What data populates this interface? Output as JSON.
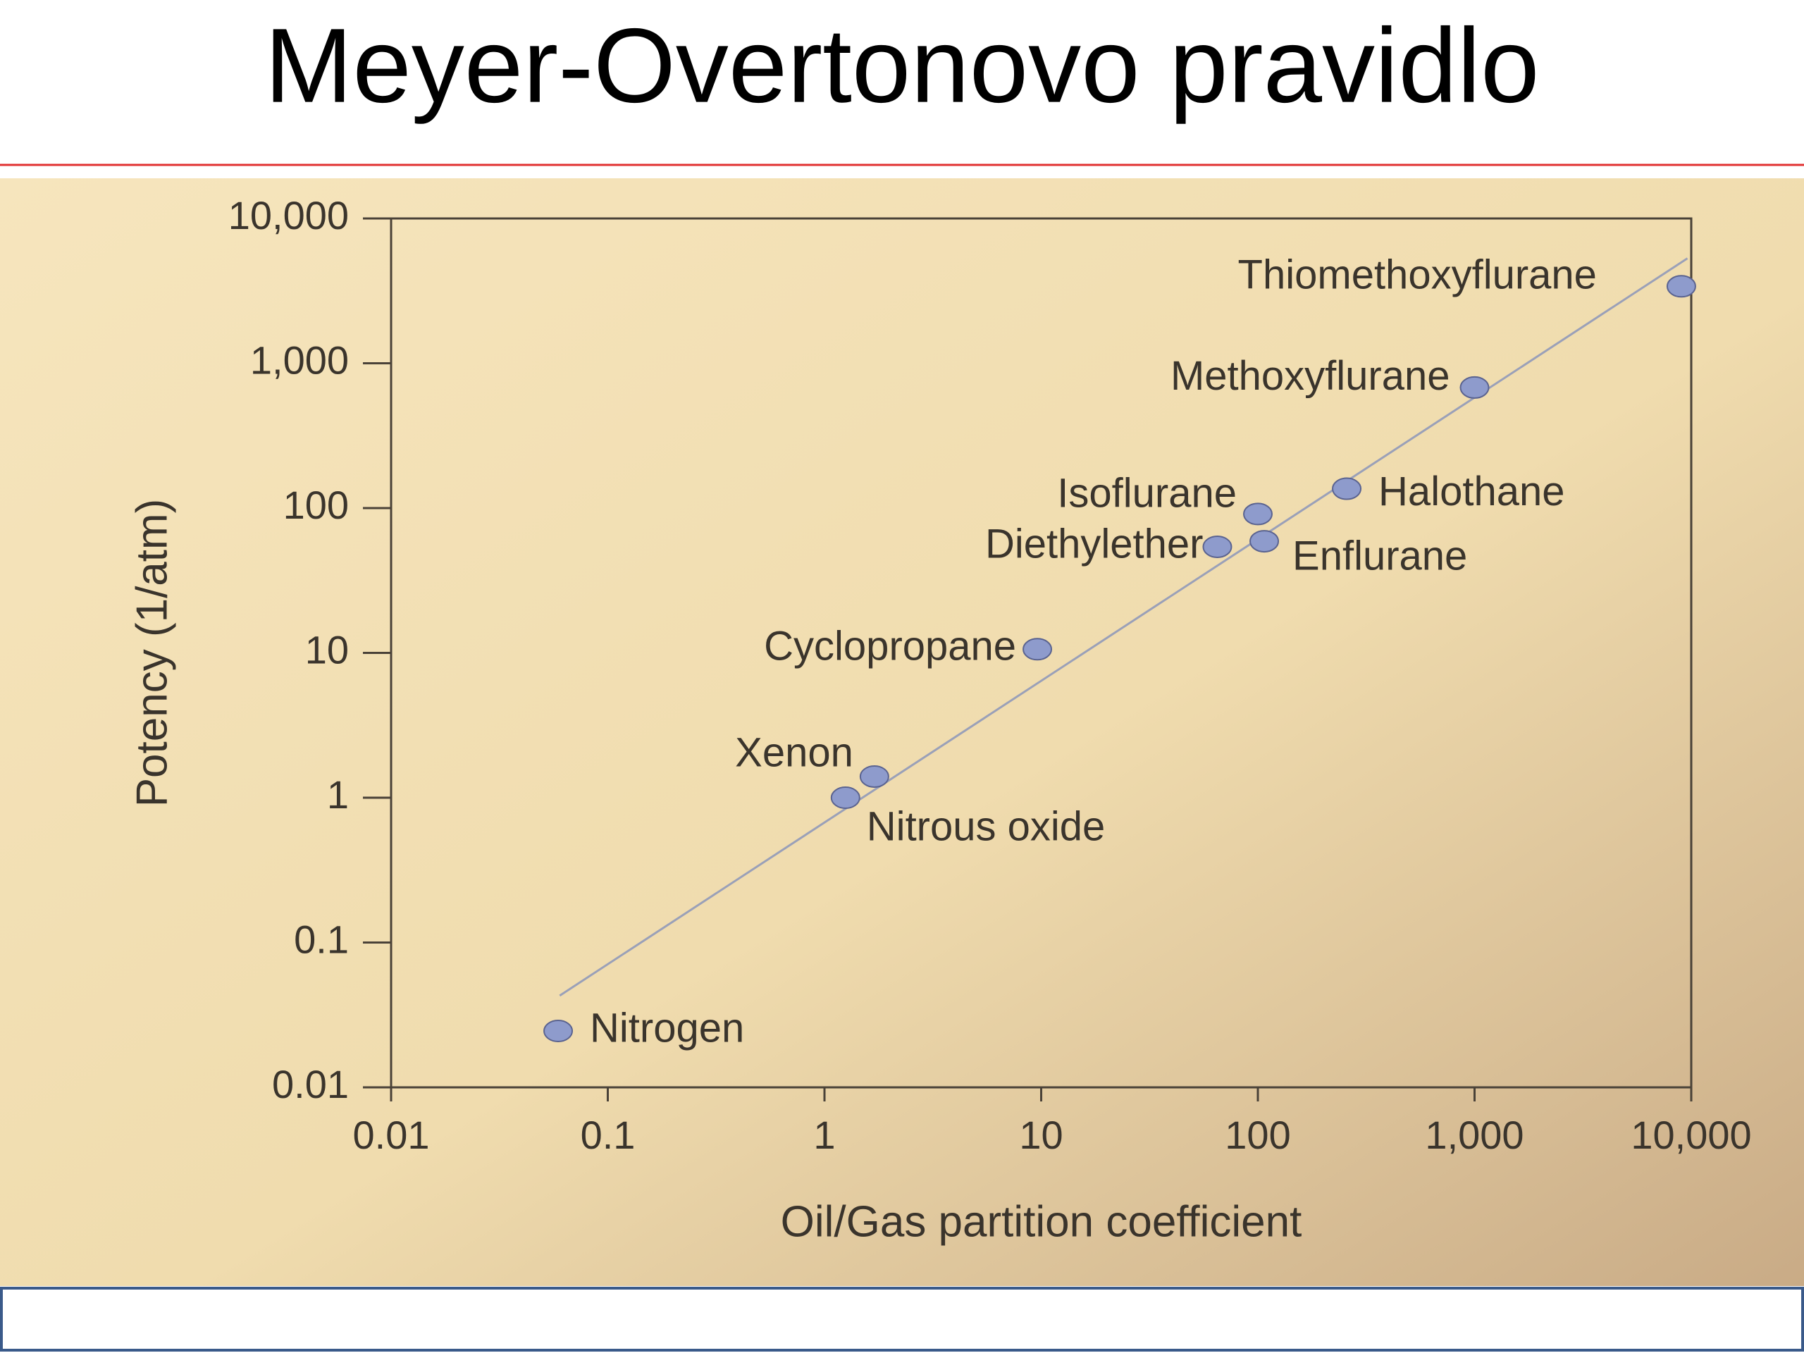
{
  "title": "Meyer-Overtonovo pravidlo",
  "chart_data": {
    "type": "scatter",
    "x_label": "Oil/Gas partition coefficient",
    "y_label": "Potency (1/atm)",
    "log_x": true,
    "log_y": true,
    "xlim": [
      0.01,
      10000
    ],
    "ylim": [
      0.01,
      10000
    ],
    "xticks": [
      0.01,
      0.1,
      1,
      10,
      100,
      {
        "value": 1000,
        "label": "1,000"
      },
      {
        "value": 10000,
        "label": "10,000"
      }
    ],
    "yticks": [
      0.01,
      0.1,
      1,
      10,
      100,
      {
        "value": 1000,
        "label": "1,000"
      },
      {
        "value": 10000,
        "label": "10,000"
      }
    ],
    "color": "#8e9bcc",
    "point_labels": [
      "Nitrogen",
      "Nitrous oxide",
      "Xenon",
      "Cyclopropane",
      "Diethylether",
      "Enflurane",
      "Isoflurane",
      "Halothane",
      "Methoxyflurane",
      "Thiomethoxyflurane"
    ],
    "x": [
      0.059,
      1.25,
      1.7,
      9.6,
      65,
      107,
      100,
      257,
      1000,
      9000
    ],
    "values": [
      0.0245,
      1,
      1.4,
      10.6,
      54,
      59,
      91,
      136,
      680,
      3400
    ],
    "trendline": {
      "x": [
        0.06,
        9600
      ],
      "y": [
        0.043,
        5300
      ],
      "color": "#9aa0b8"
    }
  }
}
